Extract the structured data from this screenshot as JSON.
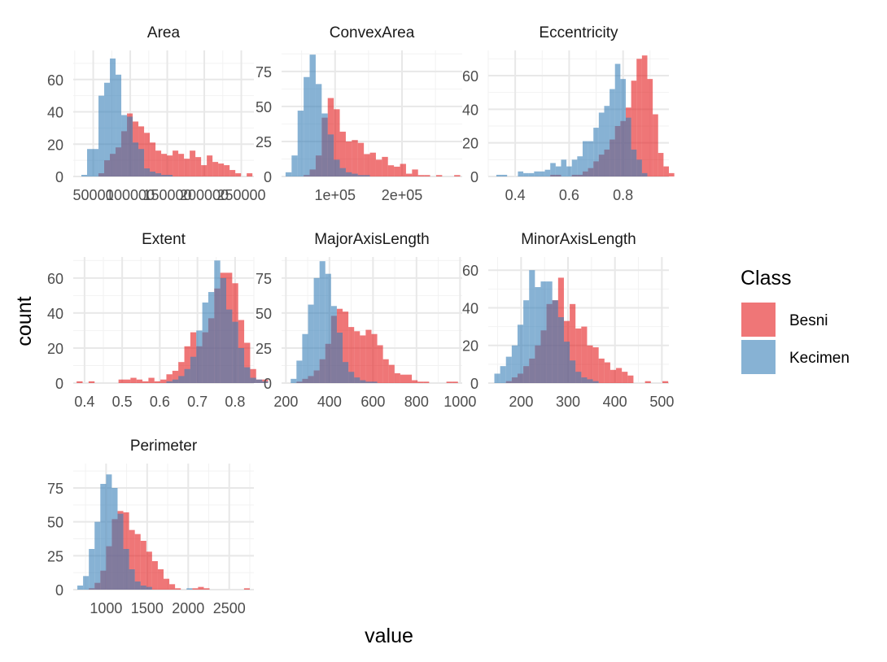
{
  "chart_data": {
    "type": "histogram",
    "layout": "facet_wrap",
    "ncol": 3,
    "xlabel": "value",
    "ylabel": "count",
    "legend": {
      "title": "Class",
      "placement": "right",
      "entries": [
        {
          "name": "Besni",
          "color": "#E41A1C"
        },
        {
          "name": "Kecimen",
          "color": "#377EB8"
        }
      ]
    },
    "overlap_color": "#6F5880",
    "bar_alpha": 0.6,
    "grid": true,
    "facets": [
      {
        "title": "Area",
        "xlim": [
          23000,
          267000
        ],
        "ylim": [
          0,
          78
        ],
        "xticks": [
          {
            "value": 50000,
            "label": "50000"
          },
          {
            "value": 100000,
            "label": "100000"
          },
          {
            "value": 150000,
            "label": "150000"
          },
          {
            "value": 200000,
            "label": "200000"
          },
          {
            "value": 250000,
            "label": "250000"
          }
        ],
        "yticks": [
          {
            "value": 0,
            "label": "0"
          },
          {
            "value": 20,
            "label": "20"
          },
          {
            "value": 40,
            "label": "40"
          },
          {
            "value": 60,
            "label": "60"
          }
        ],
        "bins": {
          "start": 34000,
          "width": 7700,
          "Besni": [
            0,
            0,
            0,
            2,
            10,
            14,
            18,
            28,
            39,
            34,
            31,
            27,
            21,
            16,
            14,
            13,
            16,
            14,
            11,
            16,
            12,
            7,
            13,
            9,
            8,
            7,
            4,
            2,
            0,
            2
          ],
          "Kecimen": [
            1,
            17,
            17,
            50,
            58,
            73,
            63,
            38,
            37,
            21,
            17,
            5,
            3,
            2,
            1,
            1,
            0,
            0,
            0,
            0,
            0,
            0,
            0,
            0,
            0,
            0,
            0,
            0,
            0,
            0
          ]
        }
      },
      {
        "title": "ConvexArea",
        "xlim": [
          20000,
          290000
        ],
        "ylim": [
          0,
          90
        ],
        "xticks": [
          {
            "value": 100000,
            "label": "1e+05"
          },
          {
            "value": 200000,
            "label": "2e+05"
          }
        ],
        "yticks": [
          {
            "value": 0,
            "label": "0"
          },
          {
            "value": 25,
            "label": "25"
          },
          {
            "value": 50,
            "label": "50"
          },
          {
            "value": 75,
            "label": "75"
          }
        ],
        "bins": {
          "start": 26000,
          "width": 9000,
          "Besni": [
            0,
            0,
            0,
            1,
            5,
            15,
            42,
            56,
            48,
            32,
            25,
            26,
            24,
            16,
            17,
            12,
            14,
            8,
            7,
            9,
            2,
            5,
            1,
            1,
            0,
            1,
            0,
            0,
            1,
            0
          ],
          "Kecimen": [
            3,
            15,
            47,
            71,
            87,
            66,
            45,
            30,
            12,
            6,
            3,
            2,
            1,
            1,
            0,
            0,
            0,
            0,
            0,
            0,
            0,
            0,
            0,
            0,
            0,
            0,
            0,
            0,
            0,
            0
          ]
        }
      },
      {
        "title": "Eccentricity",
        "xlim": [
          0.3,
          0.97
        ],
        "ylim": [
          0,
          75
        ],
        "xticks": [
          {
            "value": 0.4,
            "label": "0.4"
          },
          {
            "value": 0.6,
            "label": "0.6"
          },
          {
            "value": 0.8,
            "label": "0.8"
          }
        ],
        "yticks": [
          {
            "value": 0,
            "label": "0"
          },
          {
            "value": 20,
            "label": "20"
          },
          {
            "value": 40,
            "label": "40"
          },
          {
            "value": 60,
            "label": "60"
          }
        ],
        "bins": {
          "start": 0.33,
          "width": 0.02,
          "Besni": [
            0,
            0,
            0,
            0,
            0,
            0,
            0,
            0,
            0,
            0,
            1,
            1,
            0,
            0,
            1,
            1,
            3,
            5,
            9,
            13,
            16,
            22,
            30,
            33,
            41,
            57,
            70,
            72,
            58,
            37,
            14,
            6,
            2
          ],
          "Kecimen": [
            1,
            1,
            0,
            0,
            3,
            2,
            2,
            3,
            3,
            4,
            8,
            6,
            10,
            6,
            10,
            12,
            21,
            21,
            29,
            38,
            42,
            52,
            67,
            58,
            35,
            16,
            10,
            2,
            0,
            0,
            0,
            0,
            0
          ]
        }
      },
      {
        "title": "Extent",
        "xlim": [
          0.37,
          0.85
        ],
        "ylim": [
          0,
          72
        ],
        "xticks": [
          {
            "value": 0.4,
            "label": "0.4"
          },
          {
            "value": 0.5,
            "label": "0.5"
          },
          {
            "value": 0.6,
            "label": "0.6"
          },
          {
            "value": 0.7,
            "label": "0.7"
          },
          {
            "value": 0.8,
            "label": "0.8"
          }
        ],
        "yticks": [
          {
            "value": 0,
            "label": "0"
          },
          {
            "value": 20,
            "label": "20"
          },
          {
            "value": 40,
            "label": "40"
          },
          {
            "value": 60,
            "label": "60"
          }
        ],
        "bins": {
          "start": 0.379,
          "width": 0.0159,
          "Besni": [
            1,
            0,
            1,
            0,
            0,
            0,
            0,
            2,
            2,
            3,
            2,
            1,
            3,
            1,
            2,
            5,
            7,
            12,
            21,
            29,
            21,
            29,
            37,
            54,
            63,
            63,
            57,
            36,
            23,
            8,
            2,
            2,
            0
          ],
          "Kecimen": [
            0,
            0,
            0,
            0,
            0,
            0,
            0,
            0,
            0,
            0,
            0,
            0,
            0,
            0,
            0,
            1,
            2,
            4,
            8,
            15,
            30,
            46,
            52,
            70,
            60,
            42,
            35,
            20,
            9,
            3,
            2,
            1,
            0
          ]
        }
      },
      {
        "title": "MajorAxisLength",
        "xlim": [
          180,
          1010
        ],
        "ylim": [
          0,
          90
        ],
        "xticks": [
          {
            "value": 200,
            "label": "200"
          },
          {
            "value": 400,
            "label": "400"
          },
          {
            "value": 600,
            "label": "600"
          },
          {
            "value": 800,
            "label": "800"
          },
          {
            "value": 1000,
            "label": "1000"
          }
        ],
        "yticks": [
          {
            "value": 0,
            "label": "0"
          },
          {
            "value": 25,
            "label": "25"
          },
          {
            "value": 50,
            "label": "50"
          },
          {
            "value": 75,
            "label": "75"
          }
        ],
        "bins": {
          "start": 222,
          "width": 26.5,
          "Besni": [
            0,
            1,
            3,
            5,
            9,
            17,
            28,
            48,
            53,
            51,
            40,
            37,
            34,
            38,
            35,
            27,
            17,
            13,
            7,
            6,
            6,
            2,
            1,
            1,
            0,
            0,
            0,
            1,
            1
          ],
          "Kecimen": [
            3,
            16,
            35,
            56,
            75,
            87,
            78,
            55,
            36,
            15,
            8,
            4,
            2,
            1,
            1,
            0,
            0,
            0,
            0,
            0,
            0,
            0,
            0,
            0,
            0,
            0,
            0,
            0,
            0
          ]
        }
      },
      {
        "title": "MinorAxisLength",
        "xlim": [
          130,
          515
        ],
        "ylim": [
          0,
          67
        ],
        "xticks": [
          {
            "value": 200,
            "label": "200"
          },
          {
            "value": 300,
            "label": "300"
          },
          {
            "value": 400,
            "label": "400"
          },
          {
            "value": 500,
            "label": "500"
          }
        ],
        "yticks": [
          {
            "value": 0,
            "label": "0"
          },
          {
            "value": 20,
            "label": "20"
          },
          {
            "value": 40,
            "label": "40"
          },
          {
            "value": 60,
            "label": "60"
          }
        ],
        "bins": {
          "start": 143,
          "width": 12.35,
          "Besni": [
            0,
            0,
            1,
            3,
            5,
            9,
            13,
            20,
            28,
            42,
            44,
            56,
            33,
            42,
            29,
            30,
            20,
            19,
            13,
            11,
            7,
            8,
            6,
            4,
            0,
            0,
            1,
            0,
            0,
            1
          ],
          "Kecimen": [
            5,
            9,
            14,
            20,
            31,
            44,
            60,
            51,
            54,
            54,
            44,
            35,
            22,
            12,
            6,
            3,
            2,
            1,
            0,
            0,
            0,
            0,
            0,
            0,
            0,
            0,
            0,
            0,
            0,
            0
          ]
        }
      },
      {
        "title": "Perimeter",
        "xlim": [
          600,
          2800
        ],
        "ylim": [
          0,
          93
        ],
        "xticks": [
          {
            "value": 1000,
            "label": "1000"
          },
          {
            "value": 1500,
            "label": "1500"
          },
          {
            "value": 2000,
            "label": "2000"
          },
          {
            "value": 2500,
            "label": "2500"
          }
        ],
        "yticks": [
          {
            "value": 0,
            "label": "0"
          },
          {
            "value": 25,
            "label": "25"
          },
          {
            "value": 50,
            "label": "50"
          },
          {
            "value": 75,
            "label": "75"
          }
        ],
        "bins": {
          "start": 650,
          "width": 70,
          "Besni": [
            0,
            0,
            1,
            5,
            14,
            32,
            52,
            58,
            57,
            44,
            41,
            36,
            28,
            21,
            15,
            8,
            4,
            1,
            0,
            0,
            1,
            2,
            1,
            0,
            0,
            0,
            0,
            0,
            0,
            1
          ],
          "Kecimen": [
            3,
            10,
            30,
            50,
            78,
            85,
            75,
            56,
            30,
            15,
            6,
            3,
            2,
            0,
            0,
            0,
            0,
            0,
            0,
            1,
            0,
            0,
            0,
            0,
            0,
            0,
            0,
            0,
            0,
            0
          ]
        }
      }
    ]
  }
}
